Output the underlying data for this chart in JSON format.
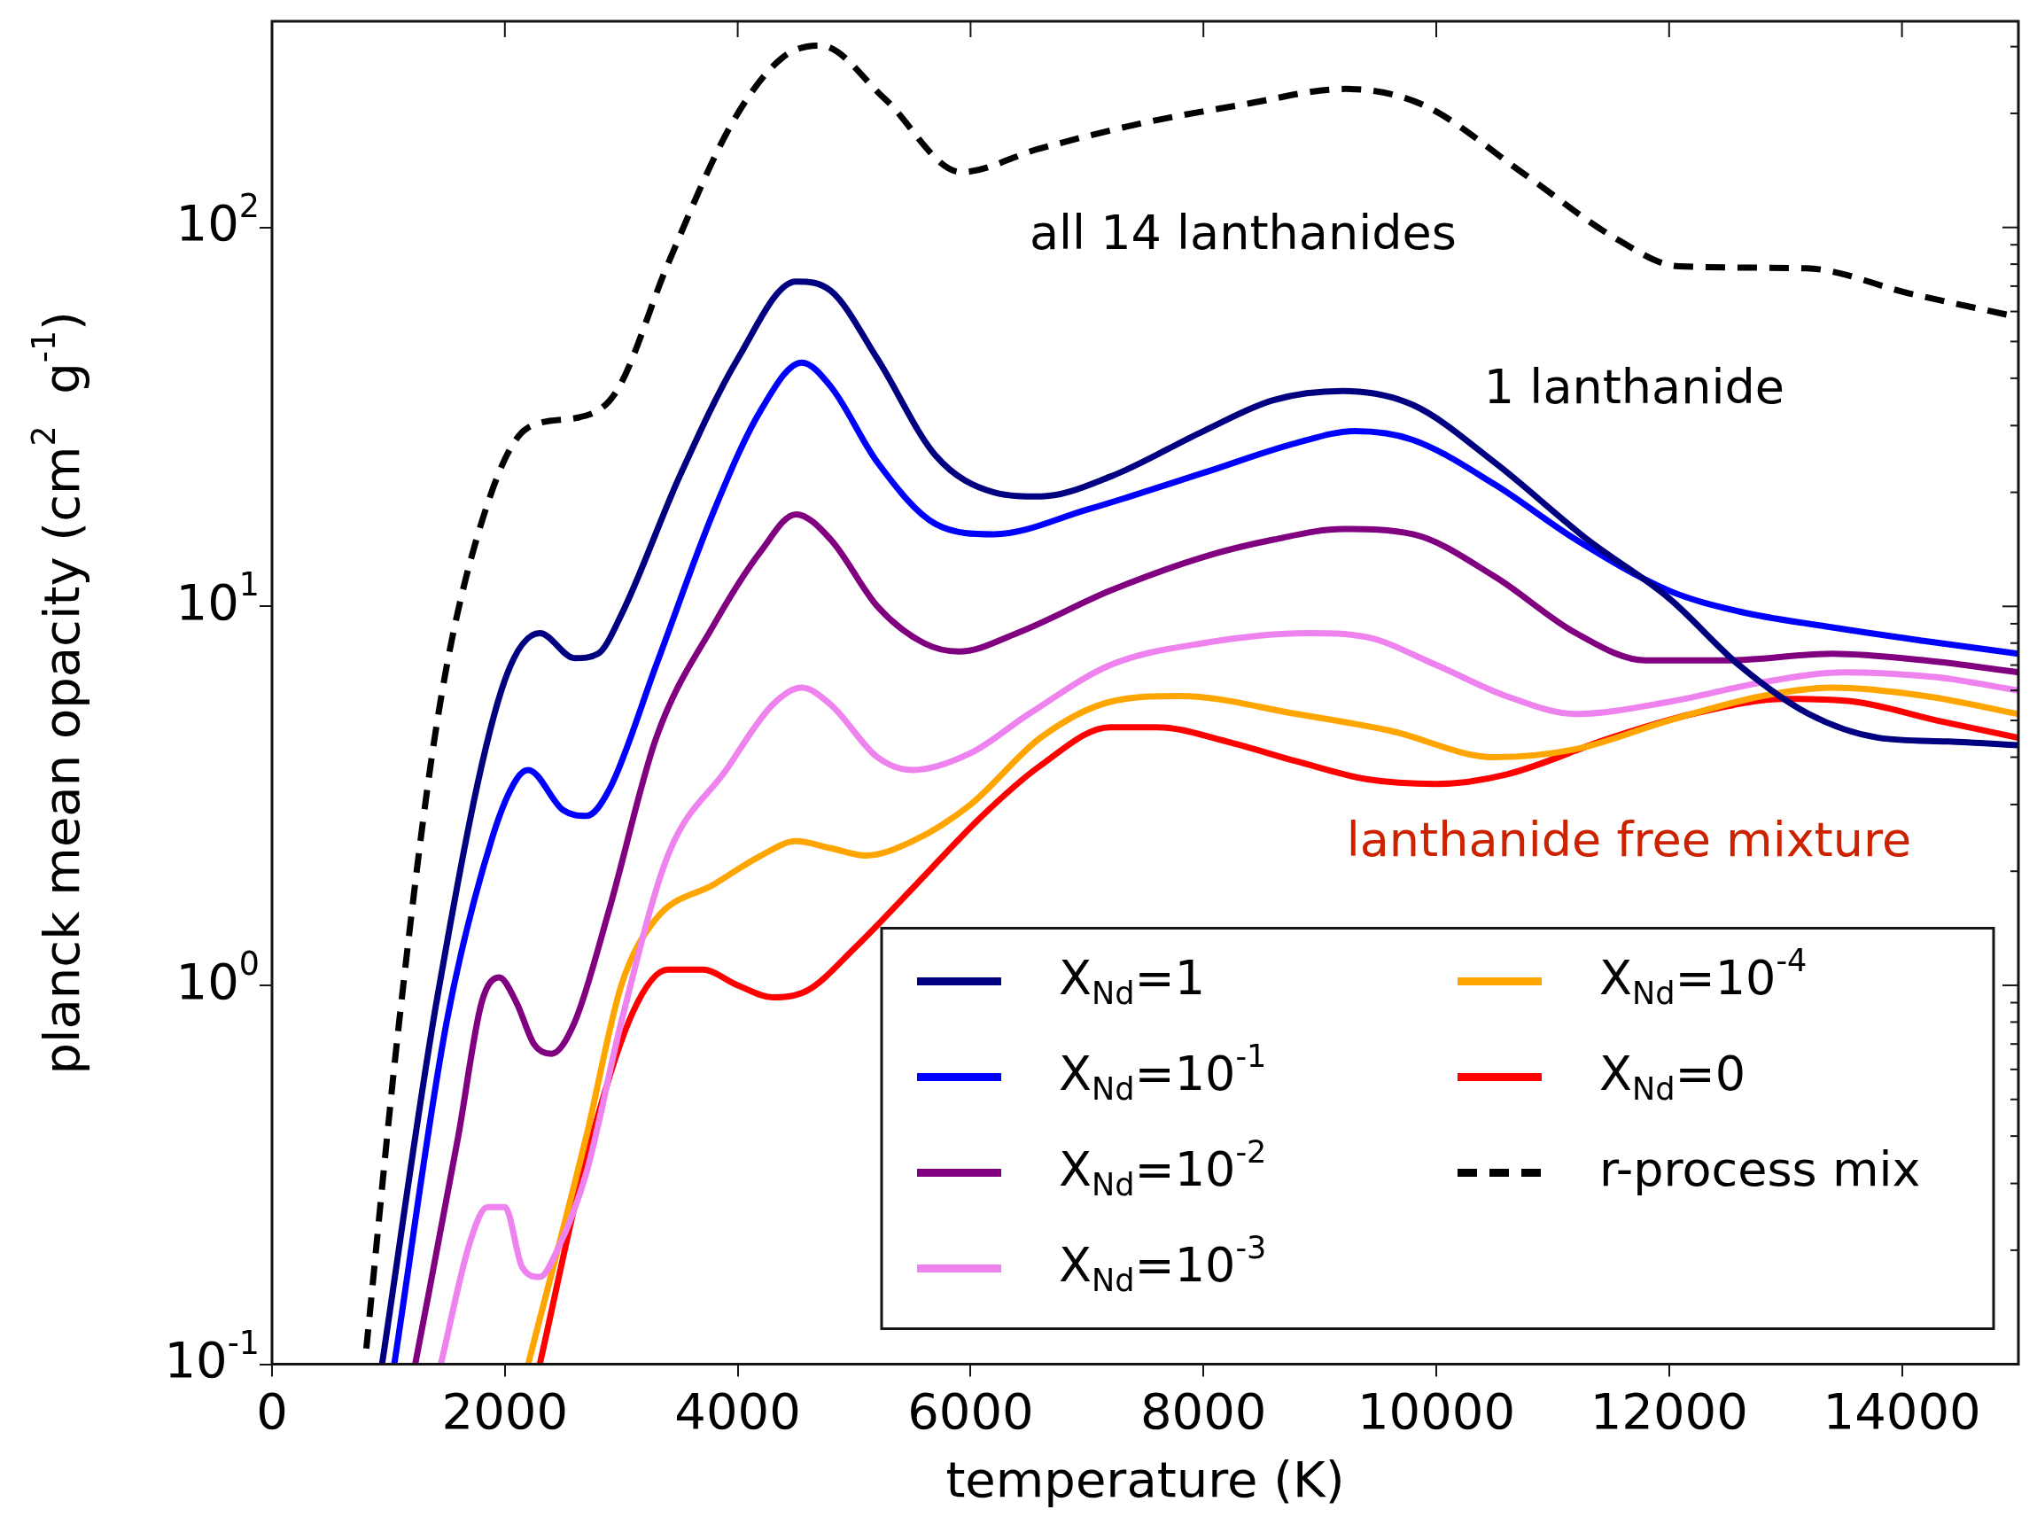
{
  "chart_data": {
    "type": "line",
    "xlabel": "temperature (K)",
    "ylabel": "planck mean opacity (cm$^{2}$  g$^{-1}$)",
    "log": "y",
    "grid": false,
    "legend": "bottom right",
    "marker": "none",
    "xlim": [
      0,
      15000
    ],
    "xticks": [
      0,
      2000,
      4000,
      6000,
      8000,
      10000,
      12000,
      14000
    ],
    "ylim": [
      0.1,
      350
    ],
    "yticks": [
      {
        "value": 0.1,
        "label": "10$^{-1}$"
      },
      {
        "value": 1,
        "label": "10$^{0}$"
      },
      {
        "value": 10,
        "label": "10$^{1}$"
      },
      {
        "value": 100,
        "label": "10$^{2}$"
      }
    ],
    "annotations": [
      "all 14 lanthanides",
      "1 lanthanide",
      "lanthanide free mixture"
    ],
    "series": [
      {
        "name": "X$_{Nd}$=1",
        "color": "#000080",
        "line_style": "solid",
        "x": [
          945,
          1420,
          1970,
          2300,
          2600,
          2800,
          3000,
          3500,
          4000,
          4500,
          4800,
          5200,
          5700,
          6200,
          6600,
          7200,
          8000,
          8600,
          9200,
          9800,
          10500,
          11300,
          12000,
          12600,
          13200,
          13800,
          14400,
          15000
        ],
        "values": [
          0.1,
          0.93,
          6.0,
          8.5,
          7.3,
          7.5,
          9.5,
          22,
          45,
          72,
          68,
          45,
          25,
          20,
          19.5,
          22,
          29,
          35,
          37,
          34,
          24,
          15,
          10.5,
          7,
          5.2,
          4.5,
          4.4,
          4.3
        ]
      },
      {
        "name": "X$_{Nd}$=10$^{-1}$",
        "color": "#0000ff",
        "line_style": "solid",
        "x": [
          1050,
          1500,
          1900,
          2100,
          2200,
          2500,
          2700,
          2900,
          3300,
          3800,
          4200,
          4550,
          4800,
          5200,
          5700,
          6200,
          7000,
          8000,
          8800,
          9300,
          9800,
          10500,
          11200,
          12000,
          12600,
          13400,
          14200,
          15000
        ],
        "values": [
          0.1,
          0.8,
          2.5,
          3.5,
          3.7,
          2.9,
          2.8,
          3.3,
          7,
          18,
          33,
          44,
          38,
          24,
          16.5,
          15.5,
          18,
          22.5,
          27,
          29,
          27.5,
          21,
          15,
          11,
          9.7,
          8.8,
          8.1,
          7.5
        ]
      },
      {
        "name": "X$_{Nd}$=10$^{-2}$",
        "color": "#800080",
        "line_style": "solid",
        "x": [
          1230,
          1600,
          1800,
          1950,
          2100,
          2250,
          2400,
          2600,
          2900,
          3300,
          3800,
          4200,
          4500,
          4800,
          5200,
          5600,
          5900,
          6400,
          7200,
          8000,
          8600,
          9200,
          9800,
          10500,
          11200,
          11800,
          12500,
          13400,
          14200,
          15000
        ],
        "values": [
          0.1,
          0.4,
          0.9,
          1.05,
          0.9,
          0.7,
          0.66,
          0.8,
          1.6,
          4.5,
          9,
          14,
          17.5,
          15,
          10,
          8,
          7.6,
          8.5,
          11,
          13.5,
          15,
          16,
          15.5,
          12,
          8.5,
          7.2,
          7.2,
          7.5,
          7.2,
          6.7
        ]
      },
      {
        "name": "X$_{Nd}$=10$^{-3}$",
        "color": "#ee82ee",
        "line_style": "solid",
        "x": [
          1450,
          1700,
          1850,
          2000,
          2150,
          2300,
          2450,
          2700,
          3000,
          3400,
          3900,
          4300,
          4550,
          4800,
          5200,
          5500,
          6000,
          6500,
          7200,
          8000,
          8900,
          9400,
          10000,
          10600,
          11200,
          12000,
          12800,
          13500,
          14300,
          15000
        ],
        "values": [
          0.1,
          0.21,
          0.26,
          0.26,
          0.18,
          0.17,
          0.2,
          0.32,
          0.8,
          2.2,
          3.7,
          5.5,
          6.1,
          5.5,
          4,
          3.7,
          4.1,
          5.2,
          7,
          8,
          8.5,
          8.3,
          7,
          5.8,
          5.2,
          5.6,
          6.3,
          6.7,
          6.5,
          6
        ]
      },
      {
        "name": "X$_{Nd}$=10$^{-4}$",
        "color": "#ffa500",
        "line_style": "solid",
        "x": [
          2200,
          2700,
          3000,
          3300,
          3800,
          4200,
          4500,
          4800,
          5100,
          5500,
          6000,
          6600,
          7200,
          7800,
          8800,
          9600,
          10500,
          11200,
          12000,
          12800,
          13400,
          14200,
          15000
        ],
        "values": [
          0.1,
          0.4,
          1,
          1.5,
          1.85,
          2.2,
          2.4,
          2.3,
          2.2,
          2.4,
          3,
          4.5,
          5.6,
          5.8,
          5.2,
          4.7,
          4.0,
          4.2,
          5,
          5.8,
          6.1,
          5.8,
          5.2
        ]
      },
      {
        "name": "X$_{Nd}$=0",
        "color": "#ff0000",
        "line_style": "solid",
        "x": [
          2300,
          2700,
          3100,
          3400,
          3700,
          4000,
          4300,
          4600,
          5000,
          5500,
          6100,
          6600,
          7200,
          7600,
          8200,
          8800,
          9400,
          10000,
          10600,
          11500,
          12200,
          13000,
          13600,
          14300,
          15000
        ],
        "values": [
          0.1,
          0.35,
          0.85,
          1.1,
          1.1,
          1,
          0.93,
          0.97,
          1.25,
          1.8,
          2.8,
          3.8,
          4.8,
          4.8,
          4.4,
          3.9,
          3.5,
          3.4,
          3.6,
          4.5,
          5.2,
          5.7,
          5.6,
          5.0,
          4.5
        ]
      },
      {
        "name": "r-process mix",
        "color": "#000000",
        "line_style": "dashed",
        "x": [
          810,
          1090,
          1420,
          1750,
          2190,
          2630,
          2960,
          3400,
          3950,
          4380,
          4710,
          5260,
          5920,
          6580,
          7460,
          8340,
          9220,
          9880,
          10760,
          11530,
          12080,
          13180,
          14060,
          15000
        ],
        "values": [
          0.11,
          0.79,
          5.0,
          14.8,
          29.5,
          31.5,
          37,
          80,
          188,
          280,
          302,
          219,
          140,
          161,
          188,
          211,
          232,
          211,
          138,
          94,
          79,
          78,
          67,
          58
        ]
      }
    ]
  }
}
